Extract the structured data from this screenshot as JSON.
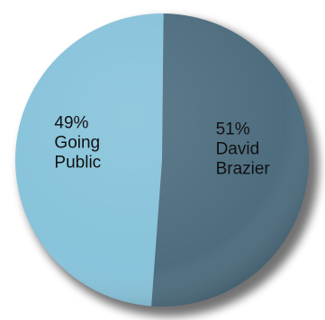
{
  "chart_data": {
    "type": "pie",
    "title": "",
    "slices": [
      {
        "name": "David Brazier",
        "value": 51,
        "percent_label": "51%",
        "label_lines": [
          "David",
          "Brazier"
        ],
        "color": "#4d6d7f"
      },
      {
        "name": "Going Public",
        "value": 49,
        "percent_label": "49%",
        "label_lines": [
          "Going",
          "Public"
        ],
        "color": "#87c3da"
      }
    ],
    "legend": "none",
    "grid": false
  }
}
